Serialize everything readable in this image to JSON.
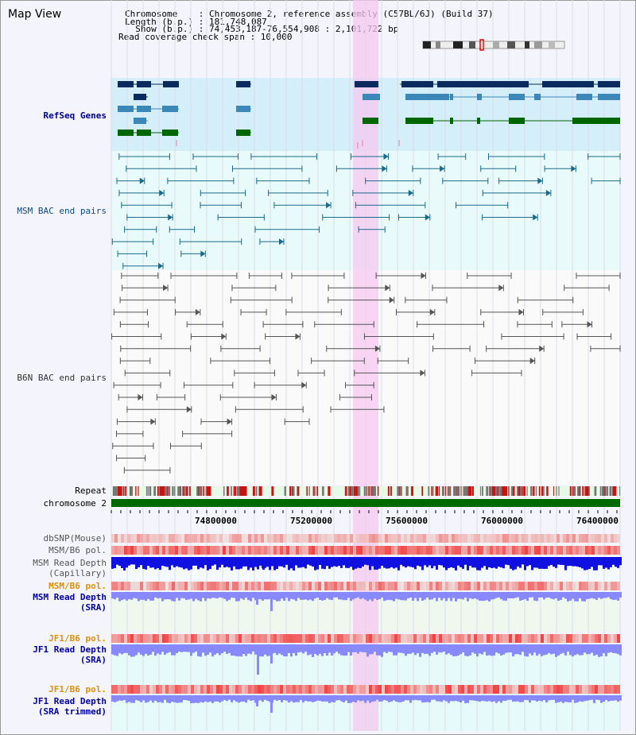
{
  "header": {
    "title": "Map View",
    "chromosome": "Chromosome    : Chromosome 2, reference assembly (C57BL/6J) (Build 37)",
    "length": "Length (b.p.) : 181,748,087",
    "show": "  Show (b.p.) : 74,453,187-76,554,908 : 2,101,722 bp",
    "coverage": "Read coverage check span : 10,000"
  },
  "tracks": {
    "refseq": "RefSeq Genes",
    "msm_bac": "MSM BAC end pairs",
    "b6n_bac": "B6N BAC end pairs",
    "repeat": "Repeat",
    "chromosome": "chromosome 2",
    "dbsnp": "dbSNP(Mouse)",
    "msm_pol": "MSM/B6 pol.",
    "msm_depth_cap": "MSM Read Depth\n(Capillary)",
    "msm_pol2": "MSM/B6 pol.",
    "msm_depth_sra": "MSM Read Depth\n(SRA)",
    "jf1_pol": "JF1/B6 pol.",
    "jf1_depth_sra": "JF1 Read Depth\n(SRA)",
    "jf1_pol2": "JF1/B6 pol.",
    "jf1_depth_trim": "JF1 Read Depth\n(SRA trimmed)"
  },
  "axis": {
    "ticks": [
      "74800000",
      "75200000",
      "75600000",
      "76000000",
      "76400000"
    ]
  },
  "colors": {
    "gene_dark": "#0b2a5e",
    "gene_mid": "#3b88b8",
    "gene_green": "#006600",
    "msm_line": "#1a6a8a",
    "b6n_line": "#555555",
    "highlight": "#f5c8f0",
    "depth_blue": "#1010e0",
    "depth_light": "#8888ff",
    "pol_red": "#ee3333",
    "chrom_green": "#006a00"
  }
}
